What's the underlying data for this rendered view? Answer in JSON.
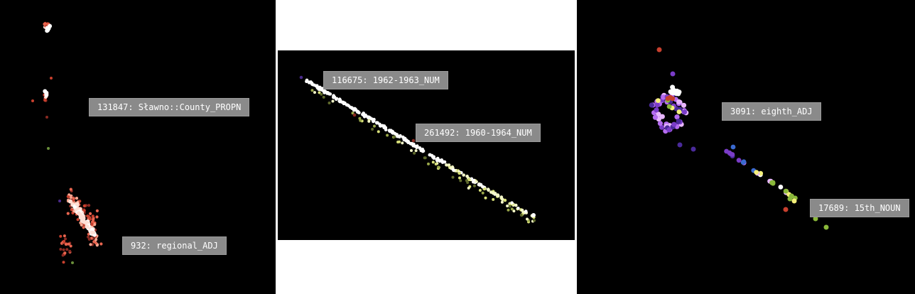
{
  "panels": [
    {
      "id": "left",
      "labels": [
        "131847: Sławno::County_PROPN",
        "932: regional_ADJ"
      ],
      "colors": [
        "#ffffff",
        "#ffe0d6",
        "#f7a48e",
        "#e8654f",
        "#c8402e",
        "#8a2a22",
        "#6a8f3a"
      ]
    },
    {
      "id": "middle",
      "labels": [
        "116675: 1962-1963_NUM",
        "261492: 1960-1964_NUM"
      ],
      "colors": [
        "#ffffff",
        "#f4f7c8",
        "#d8e07a",
        "#9aa84a",
        "#5f6a2c",
        "#8a2a22",
        "#4a2a8a"
      ]
    },
    {
      "id": "right",
      "labels": [
        "3091: eighth_ADJ",
        "17689: 15th_NOUN"
      ],
      "colors": [
        "#ffffff",
        "#e8b6ff",
        "#b56cf0",
        "#7a3cc8",
        "#4a2a9a",
        "#3a6ad0",
        "#c8402e",
        "#8ab83a",
        "#f4f07a"
      ]
    }
  ]
}
